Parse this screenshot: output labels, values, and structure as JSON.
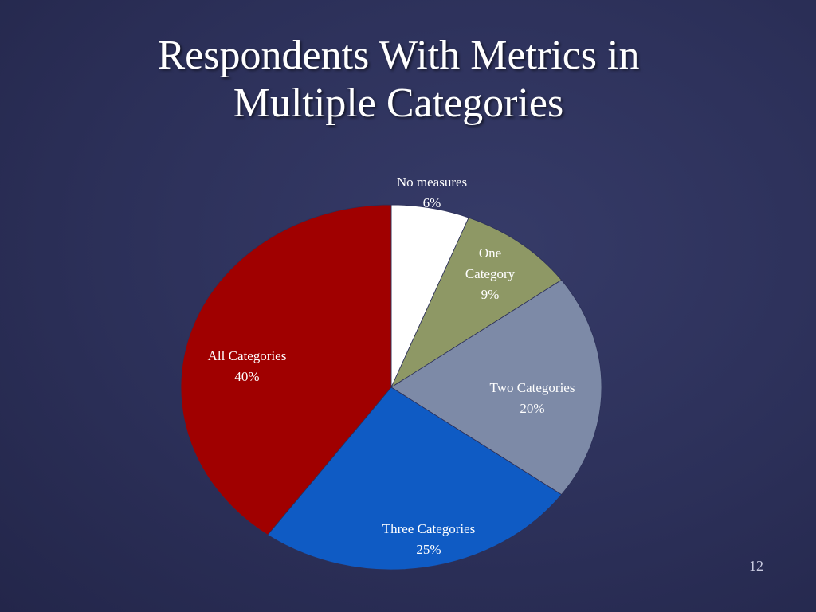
{
  "slide": {
    "title_line1": "Respondents With Metrics in",
    "title_line2": "Multiple Categories",
    "page_number": "12"
  },
  "chart_data": {
    "type": "pie",
    "title": "Respondents With Metrics in Multiple Categories",
    "start_angle_deg": 0,
    "direction": "clockwise",
    "slices": [
      {
        "label_lines": [
          "No measures"
        ],
        "percent_text": "6%",
        "value": 6,
        "color": "#ffffff",
        "label_color": "#ffffff"
      },
      {
        "label_lines": [
          "One",
          "Category"
        ],
        "percent_text": "9%",
        "value": 9,
        "color": "#8e9865",
        "label_color": "#ffffff"
      },
      {
        "label_lines": [
          "Two Categories"
        ],
        "percent_text": "20%",
        "value": 20,
        "color": "#7d8aa7",
        "label_color": "#ffffff"
      },
      {
        "label_lines": [
          "Three Categories"
        ],
        "percent_text": "25%",
        "value": 25,
        "color": "#0f5bc4",
        "label_color": "#ffffff"
      },
      {
        "label_lines": [
          "All Categories"
        ],
        "percent_text": "40%",
        "value": 40,
        "color": "#a00000",
        "label_color": "#ffffff"
      }
    ]
  }
}
